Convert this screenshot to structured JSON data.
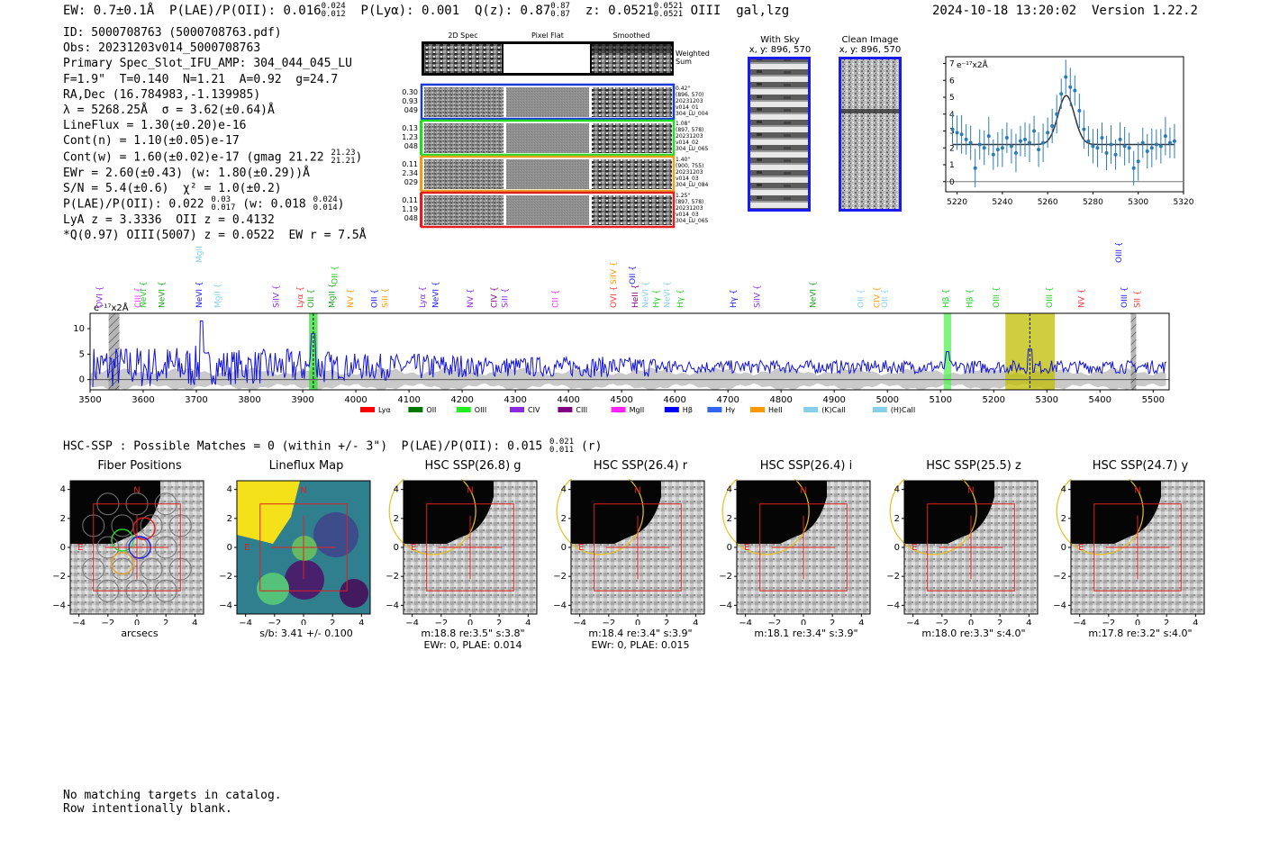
{
  "header": {
    "ew": "EW: 0.7±0.1Å",
    "plae_label": "P(LAE)/P(OII): 0.016",
    "plae_hi": "0.024",
    "plae_lo": "0.012",
    "plya": "P(Lyα): 0.001",
    "q_label": "Q(z): 0.87",
    "q_hi": "0.87",
    "q_lo": "0.87",
    "z_label": "z: 0.0521",
    "z_hi": "0.0521",
    "z_lo": "0.0521",
    "line_type": "OIII  gal,lzg",
    "timestamp": "2024-10-18 13:20:02",
    "version": "Version 1.22.2"
  },
  "info": {
    "id": "ID: 5000708763 (5000708763.pdf)",
    "obs": "Obs: 20231203v014_5000708763",
    "primary": "Primary Spec_Slot_IFU_AMP: 304_044_045_LU",
    "fit": "F=1.9\"  T=0.140  N=1.21  A=0.92  g=24.7",
    "radec": "RA,Dec (16.784983,-1.139985)",
    "lambda": "λ = 5268.25Å  σ = 3.62(±0.64)Å",
    "lineflux": "LineFlux = 1.30(±0.20)e-16",
    "contn": "Cont(n) = 1.10(±0.05)e-17",
    "contw": "Cont(w) = 1.60(±0.02)e-17 (gmag 21.22",
    "contw_hi": "21.23",
    "contw_lo": "21.21",
    "contw_end": ")",
    "ewr": "EWr = 2.60(±0.43) (w: 1.80(±0.29))Å",
    "sn": "S/N = 5.4(±0.6)  χ² = 1.0(±0.2)",
    "plae": "P(LAE)/P(OII): 0.022",
    "plae_hi": "0.03",
    "plae_lo": "0.017",
    "plae_w": "(w: 0.018",
    "plae_w_hi": "0.024",
    "plae_w_lo": "0.014",
    "plae_end": ")",
    "lya": "LyA z = 3.3336  OII z = 0.4132",
    "q": "*Q(0.97) OIII(5007) z = 0.0522  EW r = 7.5Å"
  },
  "cutouts": {
    "col_headers": [
      "2D Spec",
      "Pixel Flat",
      "Smoothed"
    ],
    "weighted_sum": "Weighted Sum",
    "rows": [
      {
        "left": [
          "0.30",
          "0.93",
          "049"
        ],
        "right": [
          "0.42\"",
          "(896, 570)",
          "20231203",
          "v014_01",
          "304_LU_004"
        ],
        "color": "#1a3bd6"
      },
      {
        "left": [
          "0.13",
          "1.23",
          "048"
        ],
        "right": [
          "1.08\"",
          "(897, 578)",
          "20231203",
          "v014_02",
          "304_LU_065"
        ],
        "color": "#22dd22"
      },
      {
        "left": [
          "0.11",
          "2.34",
          "029"
        ],
        "right": [
          "1.40\"",
          "(900, 755)",
          "20231203",
          "v014_03",
          "304_LU_084"
        ],
        "color": "#e8a020"
      },
      {
        "left": [
          "0.11",
          "1.19",
          "048"
        ],
        "right": [
          "1.25\"",
          "(897, 578)",
          "20231203",
          "v014_03",
          "304_LU_065"
        ],
        "color": "#e02020"
      }
    ],
    "with_sky_title": "With Sky",
    "with_sky_xy": "x, y: 896, 570",
    "clean_title": "Clean Image",
    "clean_xy": "x, y: 896, 570"
  },
  "zoom_chart": {
    "type": "scatter",
    "unit_label": "e⁻¹⁷x2Å",
    "xlim": [
      5215,
      5320
    ],
    "ylim": [
      -0.6,
      7.4
    ],
    "xticks": [
      "5220",
      "5240",
      "5260",
      "5280",
      "5300",
      "5320"
    ],
    "yticks": [
      "0",
      "1",
      "2",
      "3",
      "4",
      "5",
      "6",
      "7"
    ],
    "x": [
      5218,
      5220,
      5222,
      5224,
      5226,
      5228,
      5230,
      5232,
      5234,
      5236,
      5238,
      5240,
      5242,
      5244,
      5246,
      5248,
      5250,
      5252,
      5254,
      5256,
      5258,
      5260,
      5262,
      5264,
      5266,
      5268,
      5270,
      5272,
      5274,
      5276,
      5278,
      5280,
      5282,
      5284,
      5286,
      5288,
      5290,
      5292,
      5294,
      5296,
      5298,
      5300,
      5302,
      5304,
      5306,
      5308,
      5310,
      5312,
      5314,
      5316
    ],
    "y": [
      3.1,
      2.9,
      2.8,
      2.5,
      2.3,
      0.8,
      2.2,
      2.0,
      2.7,
      1.6,
      1.9,
      2.0,
      2.6,
      2.1,
      1.7,
      2.4,
      2.5,
      2.3,
      3.0,
      1.9,
      2.3,
      2.9,
      3.3,
      4.0,
      5.2,
      6.2,
      5.6,
      5.4,
      4.2,
      3.1,
      2.4,
      2.1,
      2.0,
      2.6,
      1.7,
      2.2,
      1.6,
      2.5,
      2.1,
      2.0,
      0.8,
      1.2,
      2.3,
      1.8,
      2.0,
      2.2,
      2.1,
      2.7,
      2.3,
      2.4
    ],
    "fit": {
      "continuum": 2.2,
      "amplitude": 2.9,
      "center": 5268.2,
      "sigma": 3.62
    }
  },
  "spectrum": {
    "unit_label": "e⁻¹⁷x2Å",
    "xlim": [
      3500,
      5530
    ],
    "ylim": [
      -2,
      13
    ],
    "xticks": [
      "3500",
      "3600",
      "3700",
      "3800",
      "3900",
      "4000",
      "4100",
      "4200",
      "4300",
      "4400",
      "4500",
      "4600",
      "4700",
      "4800",
      "4900",
      "5000",
      "5100",
      "5200",
      "5300",
      "5400",
      "5500"
    ],
    "yticks": [
      "0",
      "5",
      "10"
    ],
    "regions": [
      {
        "x0": 3535,
        "x1": 3555,
        "color": "#9e9e9e",
        "hatch": true
      },
      {
        "x0": 3912,
        "x1": 3928,
        "color": "#33dd33",
        "hatch": false
      },
      {
        "x0": 5106,
        "x1": 5120,
        "color": "#55ee55",
        "hatch": false
      },
      {
        "x0": 5222,
        "x1": 5315,
        "color": "#bdbd00",
        "hatch": false
      },
      {
        "x0": 5458,
        "x1": 5468,
        "color": "#9e9e9e",
        "hatch": true
      }
    ],
    "dashed_lines": [
      3920,
      5268
    ],
    "line_labels": [
      {
        "text": "OVI",
        "x": 3523,
        "color": "#8a2be2",
        "row": 0
      },
      {
        "text": "CIII",
        "x": 3595,
        "color": "#ff22ff",
        "row": 0
      },
      {
        "text": "NeVI",
        "x": 3605,
        "color": "#22cc22",
        "row": 0
      },
      {
        "text": "NeVI",
        "x": 3640,
        "color": "#1f9f1f",
        "row": 0
      },
      {
        "text": "MgII",
        "x": 3710,
        "color": "#87ceeb",
        "row": 2
      },
      {
        "text": "NeVI",
        "x": 3710,
        "color": "#1a1aee",
        "row": 0
      },
      {
        "text": "MgII",
        "x": 3745,
        "color": "#87ceeb",
        "row": 0
      },
      {
        "text": "SiIV",
        "x": 3855,
        "color": "#8a2be2",
        "row": 0
      },
      {
        "text": "Lyα",
        "x": 3900,
        "color": "#ff3333",
        "row": 0
      },
      {
        "text": "OII",
        "x": 3920,
        "color": "#1f9f1f",
        "row": 0
      },
      {
        "text": "OII",
        "x": 3965,
        "color": "#22cc22",
        "row": 1
      },
      {
        "text": "MgII",
        "x": 3960,
        "color": "#1f9f1f",
        "row": 0
      },
      {
        "text": "NV",
        "x": 3995,
        "color": "#ff9900",
        "row": 0
      },
      {
        "text": "OII",
        "x": 4040,
        "color": "#1a1aee",
        "row": 0
      },
      {
        "text": "SiII",
        "x": 4060,
        "color": "#ff9900",
        "row": 0
      },
      {
        "text": "Lyα",
        "x": 4130,
        "color": "#8a2be2",
        "row": 0
      },
      {
        "text": "NeVI",
        "x": 4155,
        "color": "#1a1aee",
        "row": 0
      },
      {
        "text": "NV",
        "x": 4220,
        "color": "#8a2be2",
        "row": 0
      },
      {
        "text": "CIV",
        "x": 4265,
        "color": "#800080",
        "row": 0
      },
      {
        "text": "SiII",
        "x": 4285,
        "color": "#8a2be2",
        "row": 0
      },
      {
        "text": "CII",
        "x": 4380,
        "color": "#ff22ff",
        "row": 0
      },
      {
        "text": "SiIV",
        "x": 4490,
        "color": "#ff9900",
        "row": 1
      },
      {
        "text": "OII",
        "x": 4525,
        "color": "#1a1aee",
        "row": 1
      },
      {
        "text": "OVI",
        "x": 4490,
        "color": "#ff3333",
        "row": 0
      },
      {
        "text": "HeII",
        "x": 4530,
        "color": "#800080",
        "row": 0
      },
      {
        "text": "NeVI",
        "x": 4550,
        "color": "#87ceeb",
        "row": 0
      },
      {
        "text": "Hγ",
        "x": 4570,
        "color": "#22cc22",
        "row": 0
      },
      {
        "text": "NeVI",
        "x": 4590,
        "color": "#87ceeb",
        "row": 0
      },
      {
        "text": "Hγ",
        "x": 4615,
        "color": "#22cc22",
        "row": 0
      },
      {
        "text": "Hγ",
        "x": 4715,
        "color": "#1a1aee",
        "row": 0
      },
      {
        "text": "SiIV",
        "x": 4760,
        "color": "#8a2be2",
        "row": 0
      },
      {
        "text": "NeVI",
        "x": 4865,
        "color": "#1f9f1f",
        "row": 0
      },
      {
        "text": "OII",
        "x": 4955,
        "color": "#87ceeb",
        "row": 0
      },
      {
        "text": "CIV",
        "x": 4985,
        "color": "#ff9900",
        "row": 0
      },
      {
        "text": "OII",
        "x": 5000,
        "color": "#87ceeb",
        "row": 0
      },
      {
        "text": "Hβ",
        "x": 5115,
        "color": "#22cc22",
        "row": 0
      },
      {
        "text": "Hβ",
        "x": 5160,
        "color": "#22cc22",
        "row": 0
      },
      {
        "text": "OIII",
        "x": 5210,
        "color": "#22cc22",
        "row": 0
      },
      {
        "text": "OIII",
        "x": 5310,
        "color": "#22cc22",
        "row": 0
      },
      {
        "text": "NV",
        "x": 5370,
        "color": "#ff3333",
        "row": 0
      },
      {
        "text": "OIII",
        "x": 5440,
        "color": "#1a1aee",
        "row": 2
      },
      {
        "text": "OIII",
        "x": 5450,
        "color": "#1a1aee",
        "row": 0
      },
      {
        "text": "SII",
        "x": 5475,
        "color": "#ff3333",
        "row": 0
      }
    ],
    "legend": [
      {
        "label": "Lyα",
        "color": "#ff0000"
      },
      {
        "label": "OII",
        "color": "#007700"
      },
      {
        "label": "OIII",
        "color": "#22ee22"
      },
      {
        "label": "CIV",
        "color": "#8a2be2"
      },
      {
        "label": "CIII",
        "color": "#800080"
      },
      {
        "label": "MgII",
        "color": "#ff22ff"
      },
      {
        "label": "Hβ",
        "color": "#0000ff"
      },
      {
        "label": "Hγ",
        "color": "#3366ee"
      },
      {
        "label": "HeII",
        "color": "#ff9900"
      },
      {
        "label": "(K)CaII",
        "color": "#87ceeb"
      },
      {
        "label": "(H)CaII",
        "color": "#87ceeb"
      }
    ]
  },
  "hsc": {
    "title": "HSC-SSP : Possible Matches = 0 (within +/- 3\")  P(LAE)/P(OII): 0.015",
    "title_hi": "0.021",
    "title_lo": "0.011",
    "title_end": "(r)",
    "axis_ticks": [
      "−4",
      "−2",
      "0",
      "2",
      "4"
    ],
    "compass_n": "N",
    "compass_e": "E",
    "panels": [
      {
        "title": "Fiber Positions",
        "caption": [
          "arcsecs"
        ],
        "kind": "fiber"
      },
      {
        "title": "Lineflux Map",
        "caption": [
          "s/b: 3.41 +/- 0.100"
        ],
        "kind": "flux"
      },
      {
        "title": "HSC SSP(26.8) g",
        "caption": [
          "m:18.8  re:3.5\"  s:3.8\"",
          "EWr: 0, PLAE: 0.014"
        ],
        "kind": "img"
      },
      {
        "title": "HSC SSP(26.4) r",
        "caption": [
          "m:18.4  re:3.4\"  s:3.9\"",
          "EWr: 0, PLAE: 0.015"
        ],
        "kind": "img"
      },
      {
        "title": "HSC SSP(26.4) i",
        "caption": [
          "m:18.1  re:3.4\"  s:3.9\""
        ],
        "kind": "img"
      },
      {
        "title": "HSC SSP(25.5) z",
        "caption": [
          "m:18.0  re:3.3\"  s:4.0\""
        ],
        "kind": "img"
      },
      {
        "title": "HSC SSP(24.7) y",
        "caption": [
          "m:17.8  re:3.2\"  s:4.0\""
        ],
        "kind": "img"
      }
    ]
  },
  "footer": {
    "line1": "No matching targets in catalog.",
    "line2": "Row intentionally blank."
  }
}
